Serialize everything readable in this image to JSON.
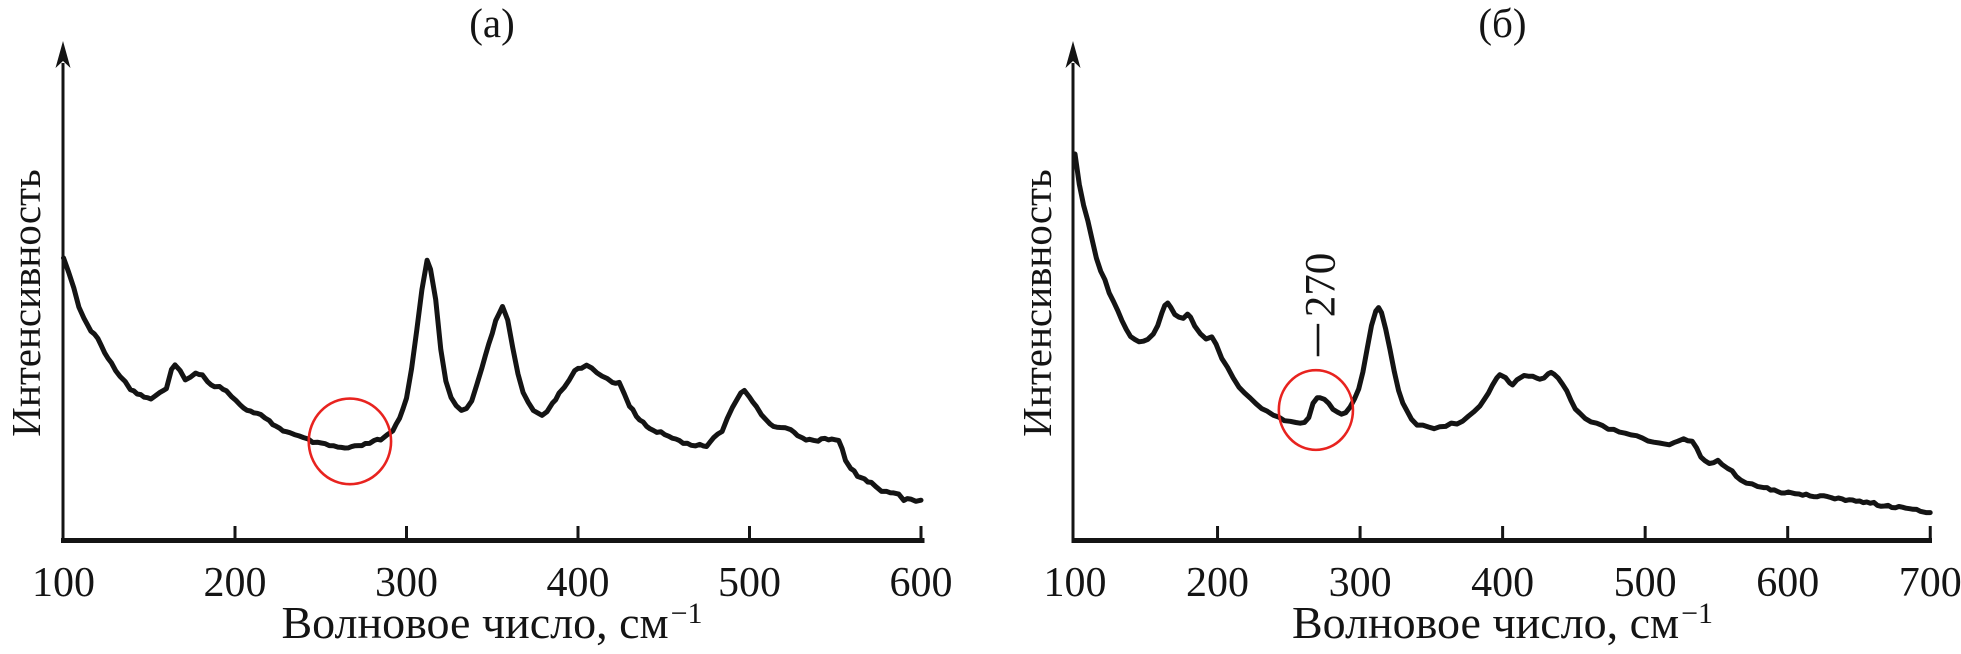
{
  "figure": {
    "background": "#ffffff",
    "line_color": "#141414",
    "accent_red": "#e8231f"
  },
  "chart_data": [
    {
      "type": "line",
      "panel": "a",
      "title": "(а)",
      "xlabel": "Волновое число, см",
      "xlabel_superscript": "−1",
      "ylabel": "Интенсивность",
      "x_ticks": [
        100,
        200,
        300,
        400,
        500,
        600
      ],
      "xlim": [
        100,
        600
      ],
      "ylim": [
        0,
        1
      ],
      "grid": false,
      "y_axis_style": "arrow-unlabeled",
      "series": [
        {
          "name": "spectrum-a",
          "x": [
            100,
            103,
            106,
            109,
            112,
            116,
            120,
            124,
            128,
            133,
            136,
            139,
            143,
            147,
            151,
            156,
            160,
            163,
            165,
            168,
            171,
            174,
            177,
            181,
            184,
            188,
            191,
            195,
            198,
            203,
            209,
            215,
            220,
            226,
            232,
            240,
            248,
            255,
            260,
            264,
            268,
            272,
            276,
            281,
            285,
            289,
            292,
            296,
            300,
            303,
            306,
            309,
            312,
            314,
            317,
            320,
            323,
            326,
            329,
            332,
            335,
            338,
            341,
            344,
            348,
            352,
            356,
            359,
            362,
            365,
            368,
            371,
            374,
            379,
            382,
            385,
            389,
            392,
            395,
            398,
            402,
            405,
            408,
            411,
            414,
            417,
            420,
            424,
            427,
            430,
            434,
            440,
            446,
            453,
            459,
            466,
            471,
            475,
            479,
            484,
            487,
            490,
            493,
            495,
            497,
            500,
            502,
            504,
            507,
            510,
            514,
            518,
            521,
            524,
            528,
            531,
            535,
            540,
            544,
            548,
            552,
            554,
            556,
            559,
            563,
            567,
            571,
            574,
            577,
            580,
            584,
            587,
            590,
            592,
            594,
            597,
            600
          ],
          "y": [
            0.566,
            0.542,
            0.506,
            0.47,
            0.446,
            0.422,
            0.406,
            0.38,
            0.356,
            0.332,
            0.32,
            0.306,
            0.296,
            0.29,
            0.286,
            0.296,
            0.306,
            0.342,
            0.352,
            0.342,
            0.326,
            0.33,
            0.336,
            0.332,
            0.32,
            0.312,
            0.31,
            0.302,
            0.292,
            0.272,
            0.26,
            0.252,
            0.24,
            0.226,
            0.216,
            0.206,
            0.196,
            0.192,
            0.188,
            0.186,
            0.188,
            0.19,
            0.194,
            0.2,
            0.204,
            0.212,
            0.22,
            0.246,
            0.286,
            0.346,
            0.426,
            0.506,
            0.562,
            0.546,
            0.486,
            0.386,
            0.322,
            0.29,
            0.27,
            0.26,
            0.266,
            0.28,
            0.316,
            0.346,
            0.396,
            0.442,
            0.472,
            0.446,
            0.386,
            0.336,
            0.296,
            0.276,
            0.262,
            0.252,
            0.262,
            0.276,
            0.296,
            0.31,
            0.326,
            0.34,
            0.348,
            0.352,
            0.346,
            0.34,
            0.33,
            0.326,
            0.32,
            0.316,
            0.296,
            0.272,
            0.252,
            0.23,
            0.22,
            0.212,
            0.202,
            0.19,
            0.194,
            0.192,
            0.206,
            0.222,
            0.246,
            0.266,
            0.286,
            0.296,
            0.302,
            0.29,
            0.28,
            0.27,
            0.254,
            0.24,
            0.232,
            0.228,
            0.228,
            0.222,
            0.214,
            0.206,
            0.204,
            0.202,
            0.204,
            0.206,
            0.2,
            0.186,
            0.16,
            0.146,
            0.132,
            0.124,
            0.116,
            0.108,
            0.1,
            0.098,
            0.096,
            0.096,
            0.082,
            0.084,
            0.086,
            0.082,
            0.082
          ]
        }
      ],
      "annotations": [
        {
          "shape": "ellipse",
          "x_center": 267,
          "y_center": 0.2,
          "x_radius": 24,
          "y_radius": 0.086
        }
      ],
      "peak_positions_cm1": [
        165,
        312,
        356,
        405,
        497
      ]
    },
    {
      "type": "line",
      "panel": "b",
      "title": "(б)",
      "xlabel": "Волновое число, см",
      "xlabel_superscript": "−1",
      "ylabel": "Интенсивность",
      "x_ticks": [
        100,
        200,
        300,
        400,
        500,
        600,
        700
      ],
      "xlim": [
        100,
        700
      ],
      "ylim": [
        0,
        1
      ],
      "grid": false,
      "y_axis_style": "arrow-unlabeled",
      "series": [
        {
          "name": "spectrum-b",
          "x": [
            100,
            103,
            106,
            109,
            112,
            115,
            118,
            121,
            124,
            127,
            130,
            133,
            136,
            139,
            142,
            145,
            148,
            151,
            155,
            158,
            161,
            163,
            165,
            167,
            170,
            173,
            176,
            179,
            181,
            184,
            188,
            192,
            196,
            199,
            203,
            207,
            211,
            215,
            219,
            223,
            227,
            231,
            235,
            239,
            243,
            247,
            251,
            255,
            258,
            261,
            264,
            267,
            270,
            272,
            275,
            278,
            281,
            284,
            287,
            290,
            293,
            296,
            299,
            302,
            305,
            308,
            311,
            313,
            315,
            318,
            321,
            324,
            327,
            330,
            333,
            336,
            340,
            344,
            348,
            352,
            356,
            360,
            364,
            368,
            372,
            376,
            380,
            384,
            387,
            390,
            393,
            396,
            398,
            400,
            402,
            405,
            407,
            410,
            412,
            415,
            418,
            421,
            424,
            426,
            429,
            432,
            434,
            436,
            439,
            442,
            445,
            448,
            451,
            454,
            458,
            462,
            466,
            470,
            474,
            478,
            482,
            486,
            490,
            494,
            498,
            502,
            506,
            510,
            513,
            517,
            520,
            523,
            527,
            530,
            533,
            536,
            539,
            542,
            545,
            548,
            551,
            554,
            558,
            561,
            564,
            567,
            571,
            575,
            579,
            583,
            588,
            593,
            598,
            603,
            608,
            613,
            618,
            623,
            628,
            633,
            638,
            643,
            648,
            653,
            658,
            663,
            668,
            673,
            678,
            683,
            688,
            693,
            697,
            700
          ],
          "y": [
            0.775,
            0.715,
            0.675,
            0.641,
            0.604,
            0.568,
            0.544,
            0.524,
            0.5,
            0.48,
            0.46,
            0.44,
            0.424,
            0.412,
            0.404,
            0.4,
            0.4,
            0.404,
            0.416,
            0.432,
            0.46,
            0.472,
            0.478,
            0.468,
            0.456,
            0.45,
            0.448,
            0.454,
            0.448,
            0.434,
            0.418,
            0.408,
            0.41,
            0.394,
            0.369,
            0.349,
            0.327,
            0.307,
            0.297,
            0.287,
            0.277,
            0.267,
            0.261,
            0.255,
            0.249,
            0.243,
            0.239,
            0.237,
            0.237,
            0.239,
            0.249,
            0.277,
            0.287,
            0.289,
            0.283,
            0.275,
            0.265,
            0.259,
            0.257,
            0.259,
            0.271,
            0.287,
            0.303,
            0.339,
            0.388,
            0.434,
            0.462,
            0.468,
            0.46,
            0.424,
            0.384,
            0.339,
            0.303,
            0.279,
            0.261,
            0.247,
            0.235,
            0.231,
            0.227,
            0.227,
            0.229,
            0.231,
            0.235,
            0.237,
            0.243,
            0.251,
            0.261,
            0.269,
            0.285,
            0.295,
            0.315,
            0.327,
            0.333,
            0.331,
            0.329,
            0.317,
            0.315,
            0.323,
            0.329,
            0.333,
            0.331,
            0.331,
            0.327,
            0.323,
            0.329,
            0.335,
            0.337,
            0.335,
            0.329,
            0.315,
            0.299,
            0.283,
            0.267,
            0.255,
            0.245,
            0.239,
            0.235,
            0.231,
            0.227,
            0.223,
            0.219,
            0.217,
            0.215,
            0.211,
            0.207,
            0.203,
            0.199,
            0.195,
            0.193,
            0.195,
            0.197,
            0.201,
            0.207,
            0.203,
            0.199,
            0.187,
            0.171,
            0.159,
            0.157,
            0.159,
            0.161,
            0.155,
            0.147,
            0.139,
            0.131,
            0.123,
            0.117,
            0.113,
            0.109,
            0.107,
            0.103,
            0.099,
            0.097,
            0.095,
            0.095,
            0.093,
            0.091,
            0.091,
            0.089,
            0.087,
            0.083,
            0.083,
            0.079,
            0.079,
            0.077,
            0.073,
            0.071,
            0.069,
            0.067,
            0.065,
            0.063,
            0.061,
            0.059,
            0.057
          ]
        }
      ],
      "annotations": [
        {
          "shape": "ellipse",
          "x_center": 269,
          "y_center": 0.263,
          "x_radius": 26,
          "y_radius": 0.08,
          "label": "270",
          "label_x": 272.5,
          "label_y": 0.514,
          "leader_x": 270.5,
          "leader_y1": 0.371,
          "leader_y2": 0.436
        }
      ],
      "peak_positions_cm1": [
        165,
        270,
        313,
        398,
        415,
        433,
        527
      ]
    }
  ]
}
